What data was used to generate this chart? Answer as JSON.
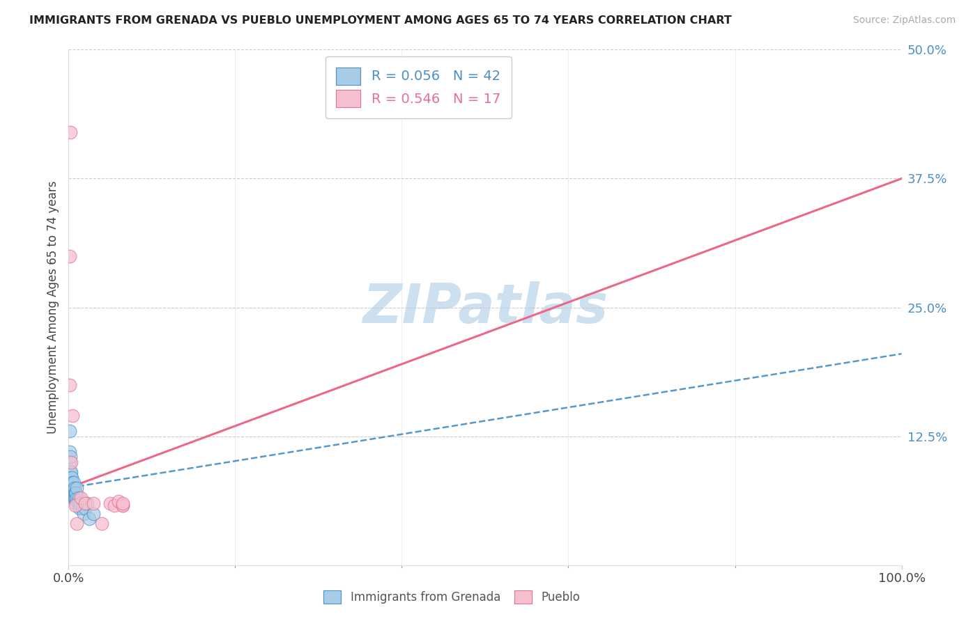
{
  "title": "IMMIGRANTS FROM GRENADA VS PUEBLO UNEMPLOYMENT AMONG AGES 65 TO 74 YEARS CORRELATION CHART",
  "source": "Source: ZipAtlas.com",
  "ylabel": "Unemployment Among Ages 65 to 74 years",
  "legend_label1": "Immigrants from Grenada",
  "legend_label2": "Pueblo",
  "R1": "0.056",
  "N1": "42",
  "R2": "0.546",
  "N2": "17",
  "xlim": [
    0.0,
    1.0
  ],
  "ylim": [
    0.0,
    0.5
  ],
  "yticks": [
    0.0,
    0.125,
    0.25,
    0.375,
    0.5
  ],
  "ytick_labels": [
    "",
    "12.5%",
    "25.0%",
    "37.5%",
    "50.0%"
  ],
  "xtick_labels": [
    "0.0%",
    "100.0%"
  ],
  "color_blue_fill": "#a8cce8",
  "color_blue_edge": "#4a90c4",
  "color_pink_fill": "#f5c0d0",
  "color_pink_edge": "#e87090",
  "color_blue_line": "#5599cc",
  "color_pink_line": "#ee6688",
  "color_right_labels": "#4a90c4",
  "watermark_color": "#cce0f0",
  "blue_scatter_x": [
    0.001,
    0.001,
    0.001,
    0.002,
    0.002,
    0.002,
    0.002,
    0.003,
    0.003,
    0.003,
    0.003,
    0.003,
    0.004,
    0.004,
    0.004,
    0.004,
    0.005,
    0.005,
    0.005,
    0.005,
    0.006,
    0.006,
    0.006,
    0.007,
    0.007,
    0.007,
    0.008,
    0.008,
    0.009,
    0.009,
    0.01,
    0.01,
    0.011,
    0.012,
    0.013,
    0.014,
    0.016,
    0.018,
    0.02,
    0.022,
    0.025,
    0.03
  ],
  "blue_scatter_y": [
    0.13,
    0.11,
    0.1,
    0.09,
    0.085,
    0.08,
    0.105,
    0.075,
    0.08,
    0.085,
    0.09,
    0.07,
    0.075,
    0.08,
    0.085,
    0.07,
    0.075,
    0.08,
    0.065,
    0.07,
    0.075,
    0.065,
    0.08,
    0.07,
    0.065,
    0.075,
    0.065,
    0.07,
    0.06,
    0.07,
    0.065,
    0.075,
    0.06,
    0.065,
    0.055,
    0.06,
    0.055,
    0.05,
    0.055,
    0.06,
    0.045,
    0.05
  ],
  "pink_scatter_x": [
    0.001,
    0.001,
    0.002,
    0.003,
    0.005,
    0.008,
    0.01,
    0.015,
    0.02,
    0.03,
    0.04,
    0.05,
    0.055,
    0.06,
    0.065,
    0.065,
    0.065
  ],
  "pink_scatter_y": [
    0.175,
    0.3,
    0.42,
    0.1,
    0.145,
    0.058,
    0.04,
    0.065,
    0.06,
    0.06,
    0.04,
    0.06,
    0.058,
    0.062,
    0.058,
    0.058,
    0.06
  ],
  "blue_line": [
    [
      0.0,
      0.075
    ],
    [
      1.0,
      0.205
    ]
  ],
  "pink_line": [
    [
      0.0,
      0.075
    ],
    [
      1.0,
      0.375
    ]
  ],
  "grid_color": "#cccccc",
  "spine_color": "#dddddd"
}
